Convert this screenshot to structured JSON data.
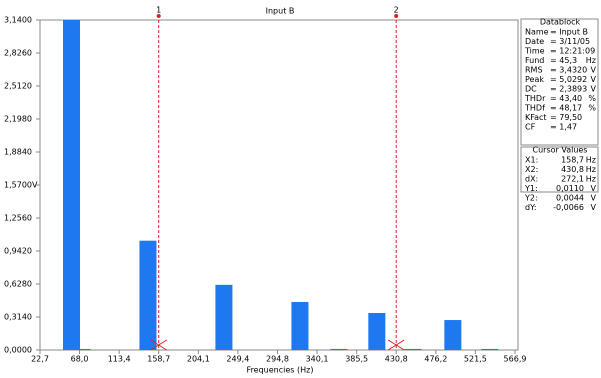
{
  "chart_data": {
    "type": "bar",
    "title": "Input B",
    "x_label": "Frequencies (Hz)",
    "color": "#1e78f0",
    "x": [
      58.8,
      70.8,
      146.4,
      233.4,
      320.5,
      365.1,
      408.6,
      450.0,
      495.7,
      538.0
    ],
    "values": [
      3.14,
      0.01,
      1.04,
      0.62,
      0.457,
      0.01,
      0.352,
      0.01,
      0.285,
      0.01
    ],
    "bar_width": 19.5,
    "xlim": [
      22.7,
      566.9
    ],
    "ylim": [
      0,
      3.14
    ],
    "xticks": [
      {
        "value": 22.7,
        "label": "22,7"
      },
      {
        "value": 68.0,
        "label": "68,0"
      },
      {
        "value": 113.4,
        "label": "113,4"
      },
      {
        "value": 158.7,
        "label": "158,7"
      },
      {
        "value": 204.1,
        "label": "204,1"
      },
      {
        "value": 249.4,
        "label": "249,4"
      },
      {
        "value": 294.8,
        "label": "294,8"
      },
      {
        "value": 340.1,
        "label": "340,1"
      },
      {
        "value": 385.5,
        "label": "385,5"
      },
      {
        "value": 430.8,
        "label": "430,8"
      },
      {
        "value": 476.2,
        "label": "476,2"
      },
      {
        "value": 521.5,
        "label": "521,5"
      },
      {
        "value": 566.9,
        "label": "566,9"
      }
    ],
    "yticks": [
      {
        "value": 0,
        "label": "0,0000"
      },
      {
        "value": 0.314,
        "label": "0,3140"
      },
      {
        "value": 0.628,
        "label": "0,6280"
      },
      {
        "value": 0.942,
        "label": "0,9420"
      },
      {
        "value": 1.256,
        "label": "1,2560"
      },
      {
        "value": 1.57,
        "label": "1,5700V"
      },
      {
        "value": 1.884,
        "label": "1,8840"
      },
      {
        "value": 2.198,
        "label": "2,1980"
      },
      {
        "value": 2.512,
        "label": "2,5120"
      },
      {
        "value": 2.826,
        "label": "2,8260"
      },
      {
        "value": 3.14,
        "label": "3,1400"
      }
    ],
    "cursors": [
      {
        "label": "1",
        "x": 158.7,
        "color": "#e02020"
      },
      {
        "label": "2",
        "x": 430.8,
        "color": "#e02020"
      }
    ]
  },
  "datablock": {
    "title": "Datablock",
    "rows": [
      [
        "Name",
        "= Input B",
        ""
      ],
      [
        "Date",
        "= 3/11/05",
        ""
      ],
      [
        "Time",
        "= 12:21:09",
        ""
      ],
      [
        "Fund",
        "= 45,3",
        "Hz"
      ],
      [
        "RMS",
        "= 3,4320",
        "V"
      ],
      [
        "Peak",
        "= 5,0292",
        "V"
      ],
      [
        "DC",
        "= 2,3893",
        "V"
      ],
      [
        "THDr",
        "= 43,40",
        "%"
      ],
      [
        "THDf",
        "= 48,17",
        "%"
      ],
      [
        "KFact",
        "= 79,50",
        ""
      ],
      [
        "CF",
        "= 1,47",
        ""
      ]
    ]
  },
  "cursor_values": {
    "title": "Cursor Values",
    "rows": [
      [
        "X1:",
        "158,7",
        "Hz"
      ],
      [
        "X2:",
        "430,8",
        "Hz"
      ],
      [
        "dX:",
        "272,1",
        "Hz"
      ],
      [
        "Y1:",
        "0,0110",
        "V"
      ],
      [
        "Y2:",
        "0,0044",
        "V"
      ],
      [
        "dY:",
        "-0,0066",
        "V"
      ]
    ]
  }
}
